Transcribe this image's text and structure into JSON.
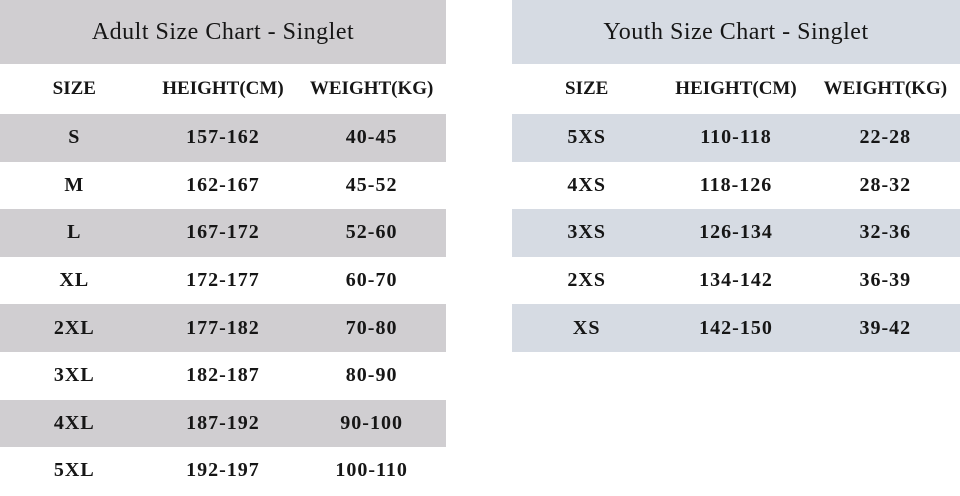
{
  "page": {
    "background_color": "#ffffff",
    "text_color": "#161616"
  },
  "tables": [
    {
      "id": "adult",
      "title": "Adult Size Chart - Singlet",
      "stripe_color": "#d0ced1",
      "columns": [
        "SIZE",
        "HEIGHT(CM)",
        "WEIGHT(KG)"
      ],
      "rows": [
        [
          "S",
          "157-162",
          "40-45"
        ],
        [
          "M",
          "162-167",
          "45-52"
        ],
        [
          "L",
          "167-172",
          "52-60"
        ],
        [
          "XL",
          "172-177",
          "60-70"
        ],
        [
          "2XL",
          "177-182",
          "70-80"
        ],
        [
          "3XL",
          "182-187",
          "80-90"
        ],
        [
          "4XL",
          "187-192",
          "90-100"
        ],
        [
          "5XL",
          "192-197",
          "100-110"
        ]
      ]
    },
    {
      "id": "youth",
      "title": "Youth Size Chart - Singlet",
      "stripe_color": "#d6dbe3",
      "columns": [
        "SIZE",
        "HEIGHT(CM)",
        "WEIGHT(KG)"
      ],
      "rows": [
        [
          "5XS",
          "110-118",
          "22-28"
        ],
        [
          "4XS",
          "118-126",
          "28-32"
        ],
        [
          "3XS",
          "126-134",
          "32-36"
        ],
        [
          "2XS",
          "134-142",
          "36-39"
        ],
        [
          "XS",
          "142-150",
          "39-42"
        ]
      ]
    }
  ]
}
